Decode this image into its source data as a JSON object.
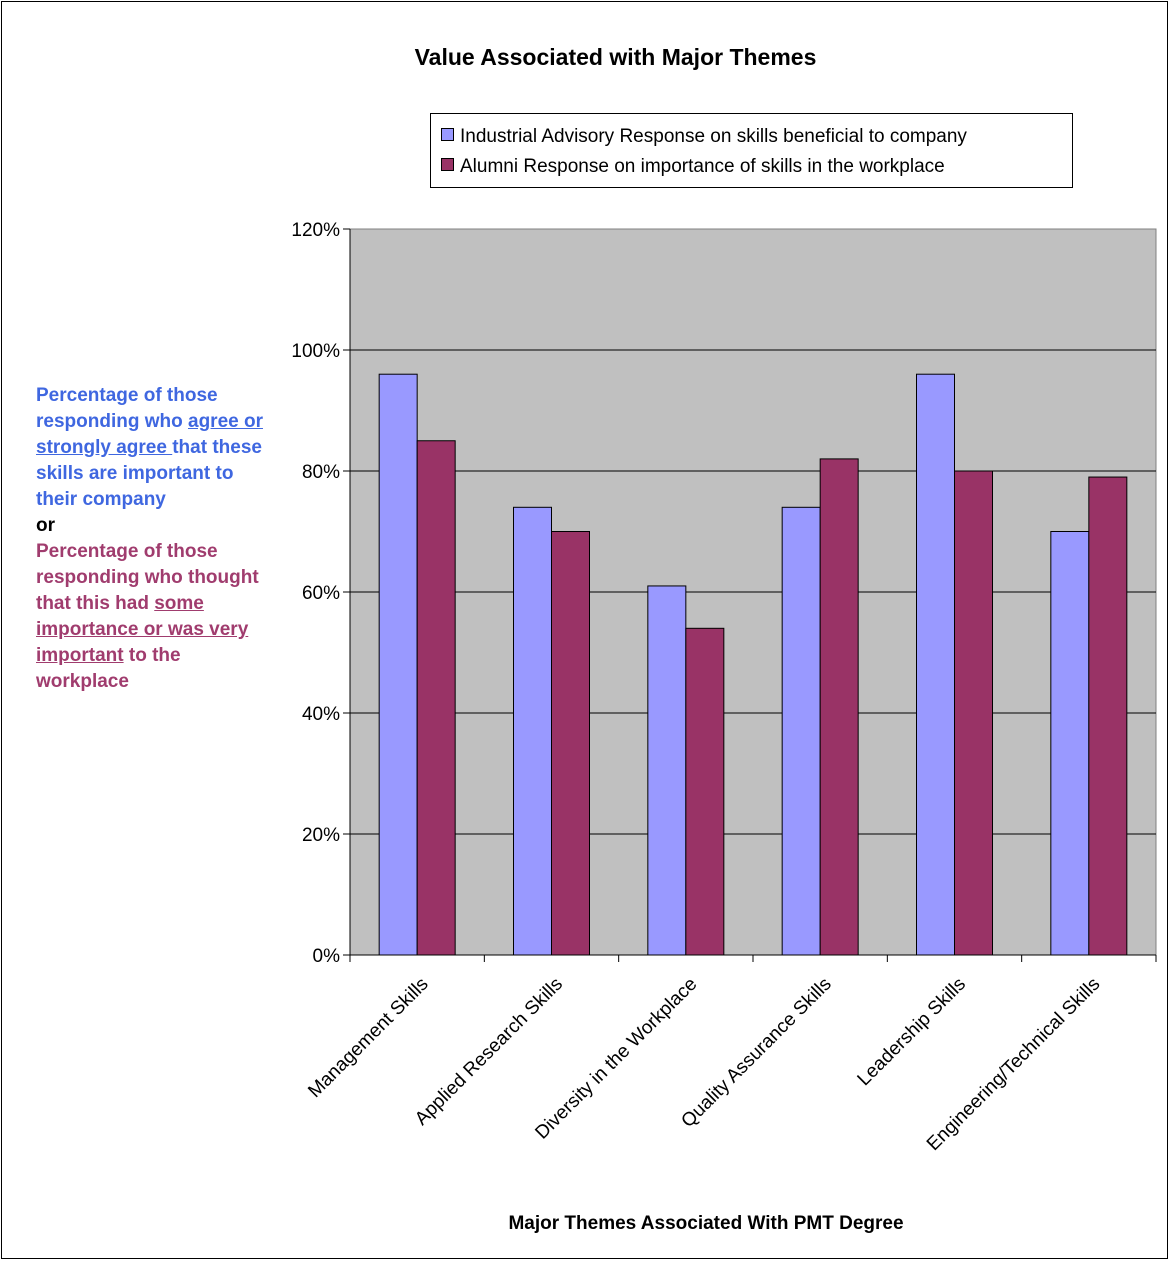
{
  "note": {
    "blue_1": "Percentage of those responding who ",
    "blue_2": "agree or strongly agree ",
    "blue_3": "that these skills are important to their company",
    "or": "or",
    "purple_1": "Percentage of those responding who thought that this had ",
    "purple_2": "some importance or was very important",
    "purple_3": " to the workplace"
  },
  "colors": {
    "series_industrial": "#9999ff",
    "series_alumni": "#993366",
    "plot_area": "#c0c0c0",
    "note_blue": "#3f67e0",
    "note_purple": "#a03c6e"
  },
  "chart_data": {
    "type": "bar",
    "title": "Value Associated with Major Themes",
    "xlabel": "Major Themes Associated With PMT Degree",
    "ylabel": "",
    "ylim": [
      0,
      1.2
    ],
    "yticks": [
      0,
      0.2,
      0.4,
      0.6,
      0.8,
      1.0,
      1.2
    ],
    "ytick_labels": [
      "0%",
      "20%",
      "40%",
      "60%",
      "80%",
      "100%",
      "120%"
    ],
    "grid": true,
    "legend_position": "top-right",
    "categories": [
      "Management Skills",
      "Applied Research Skills",
      "Diversity in the Workplace",
      "Quality Assurance Skills",
      "Leadership Skills",
      "Engineering/Technical Skills"
    ],
    "series": [
      {
        "name": "Industrial Advisory Response on skills beneficial to company",
        "values": [
          0.96,
          0.74,
          0.61,
          0.74,
          0.96,
          0.7
        ]
      },
      {
        "name": "Alumni Response on importance of skills in the workplace",
        "values": [
          0.85,
          0.7,
          0.54,
          0.82,
          0.8,
          0.79
        ]
      }
    ]
  }
}
